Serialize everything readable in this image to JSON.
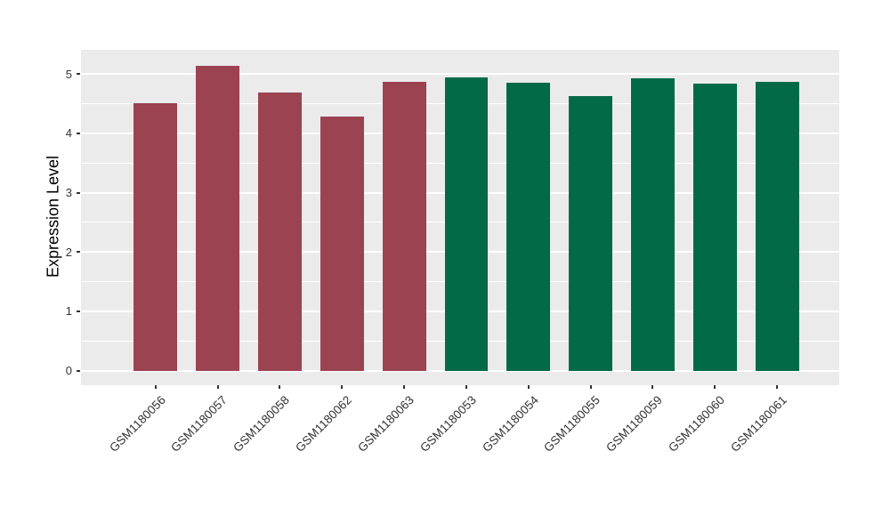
{
  "chart_data": {
    "type": "bar",
    "title": "",
    "xlabel": "",
    "ylabel": "Expression Level",
    "categories": [
      "GSM1180056",
      "GSM1180057",
      "GSM1180058",
      "GSM1180062",
      "GSM1180063",
      "GSM1180053",
      "GSM1180054",
      "GSM1180055",
      "GSM1180059",
      "GSM1180060",
      "GSM1180061"
    ],
    "values": [
      4.51,
      5.14,
      4.69,
      4.28,
      4.86,
      4.94,
      4.85,
      4.62,
      4.93,
      4.83,
      4.87
    ],
    "groups": [
      "group1",
      "group1",
      "group1",
      "group1",
      "group1",
      "group2",
      "group2",
      "group2",
      "group2",
      "group2",
      "group2"
    ],
    "group_colors": {
      "group1": "#9C4352",
      "group2": "#026A47"
    },
    "yticks": [
      0,
      1,
      2,
      3,
      4,
      5
    ],
    "ylim": [
      0,
      5.41
    ],
    "panel_value_range": [
      -0.245,
      5.41
    ],
    "minor_gridlines": [
      0.5,
      1.5,
      2.5,
      3.5,
      4.5
    ],
    "bar_width_ratio": 0.7,
    "grid": "on",
    "legend_position": "none",
    "colors": {
      "panel_background": "#EBEBEB",
      "gridline": "#FFFFFF",
      "axis_text": "#333333",
      "axis_title": "#000000",
      "tick_mark": "#333333"
    }
  }
}
